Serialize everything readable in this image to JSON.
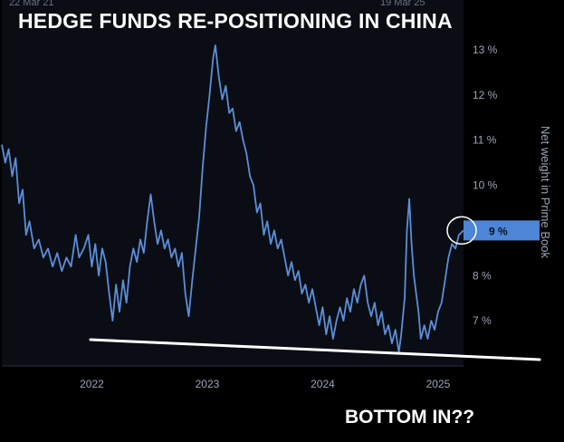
{
  "overlay": {
    "title": "HEDGE FUNDS RE-POSITIONING IN CHINA",
    "bottom_note": "BOTTOM IN??",
    "top_date_left": "22 Mar 21",
    "top_date_right": "19 Mar 25"
  },
  "colors": {
    "background": "#000000",
    "plot_background": "#0a0d14",
    "line": "#5b8fd9",
    "axis_text": "#9aa3b5",
    "highlight_box": "#4d86d6",
    "trend_line": "#ffffff"
  },
  "chart_data": {
    "type": "line",
    "title": "",
    "xlabel": "",
    "ylabel": "Net weight in Prime Book",
    "x_ticks": [
      "2022",
      "2023",
      "2024",
      "2025"
    ],
    "y_ticks": [
      "7 %",
      "8 %",
      "9 %",
      "10 %",
      "11 %",
      "12 %",
      "13 %"
    ],
    "y_tick_values": [
      7,
      8,
      9,
      10,
      11,
      12,
      13
    ],
    "ylim": [
      6.0,
      13.3
    ],
    "xlim": [
      2021.22,
      2025.22
    ],
    "grid": false,
    "current_value_label": "9 %",
    "current_value": 9.0,
    "series": [
      {
        "values": [
          [
            2021.22,
            10.9
          ],
          [
            2021.25,
            10.5
          ],
          [
            2021.28,
            10.8
          ],
          [
            2021.31,
            10.2
          ],
          [
            2021.34,
            10.6
          ],
          [
            2021.37,
            9.6
          ],
          [
            2021.4,
            9.9
          ],
          [
            2021.43,
            8.9
          ],
          [
            2021.46,
            9.2
          ],
          [
            2021.5,
            8.6
          ],
          [
            2021.54,
            8.8
          ],
          [
            2021.58,
            8.4
          ],
          [
            2021.62,
            8.6
          ],
          [
            2021.66,
            8.2
          ],
          [
            2021.7,
            8.5
          ],
          [
            2021.74,
            8.1
          ],
          [
            2021.78,
            8.4
          ],
          [
            2021.82,
            8.2
          ],
          [
            2021.86,
            8.9
          ],
          [
            2021.89,
            8.4
          ],
          [
            2021.93,
            8.6
          ],
          [
            2021.97,
            8.9
          ],
          [
            2022.0,
            8.2
          ],
          [
            2022.03,
            8.7
          ],
          [
            2022.06,
            8.0
          ],
          [
            2022.09,
            8.6
          ],
          [
            2022.12,
            8.3
          ],
          [
            2022.15,
            7.6
          ],
          [
            2022.18,
            7.0
          ],
          [
            2022.21,
            7.8
          ],
          [
            2022.24,
            7.2
          ],
          [
            2022.27,
            7.9
          ],
          [
            2022.3,
            7.4
          ],
          [
            2022.33,
            8.2
          ],
          [
            2022.36,
            8.6
          ],
          [
            2022.39,
            8.3
          ],
          [
            2022.42,
            8.8
          ],
          [
            2022.45,
            8.5
          ],
          [
            2022.48,
            9.2
          ],
          [
            2022.51,
            9.8
          ],
          [
            2022.54,
            9.2
          ],
          [
            2022.57,
            8.7
          ],
          [
            2022.6,
            9.0
          ],
          [
            2022.63,
            8.6
          ],
          [
            2022.66,
            8.8
          ],
          [
            2022.69,
            8.4
          ],
          [
            2022.72,
            8.6
          ],
          [
            2022.75,
            8.2
          ],
          [
            2022.78,
            8.5
          ],
          [
            2022.81,
            7.6
          ],
          [
            2022.84,
            7.1
          ],
          [
            2022.87,
            7.9
          ],
          [
            2022.9,
            8.6
          ],
          [
            2022.93,
            9.3
          ],
          [
            2022.96,
            10.4
          ],
          [
            2022.99,
            11.3
          ],
          [
            2023.02,
            12.0
          ],
          [
            2023.05,
            12.8
          ],
          [
            2023.07,
            13.1
          ],
          [
            2023.1,
            12.4
          ],
          [
            2023.13,
            11.9
          ],
          [
            2023.16,
            12.2
          ],
          [
            2023.19,
            11.6
          ],
          [
            2023.22,
            11.7
          ],
          [
            2023.25,
            11.2
          ],
          [
            2023.28,
            11.4
          ],
          [
            2023.31,
            11.0
          ],
          [
            2023.34,
            10.7
          ],
          [
            2023.37,
            10.2
          ],
          [
            2023.4,
            10.0
          ],
          [
            2023.43,
            9.4
          ],
          [
            2023.46,
            9.6
          ],
          [
            2023.49,
            8.9
          ],
          [
            2023.52,
            9.2
          ],
          [
            2023.55,
            8.7
          ],
          [
            2023.58,
            9.0
          ],
          [
            2023.61,
            8.6
          ],
          [
            2023.64,
            8.8
          ],
          [
            2023.67,
            8.4
          ],
          [
            2023.7,
            8.0
          ],
          [
            2023.73,
            8.3
          ],
          [
            2023.76,
            7.9
          ],
          [
            2023.79,
            8.1
          ],
          [
            2023.82,
            7.6
          ],
          [
            2023.85,
            7.8
          ],
          [
            2023.88,
            7.4
          ],
          [
            2023.91,
            7.7
          ],
          [
            2023.94,
            7.3
          ],
          [
            2023.97,
            6.9
          ],
          [
            2024.0,
            7.3
          ],
          [
            2024.03,
            6.7
          ],
          [
            2024.06,
            7.1
          ],
          [
            2024.09,
            6.6
          ],
          [
            2024.12,
            7.0
          ],
          [
            2024.15,
            7.3
          ],
          [
            2024.18,
            7.0
          ],
          [
            2024.21,
            7.5
          ],
          [
            2024.24,
            7.2
          ],
          [
            2024.27,
            7.7
          ],
          [
            2024.3,
            7.4
          ],
          [
            2024.33,
            7.8
          ],
          [
            2024.36,
            8.0
          ],
          [
            2024.39,
            7.4
          ],
          [
            2024.42,
            7.1
          ],
          [
            2024.45,
            7.4
          ],
          [
            2024.48,
            6.9
          ],
          [
            2024.51,
            7.2
          ],
          [
            2024.54,
            6.7
          ],
          [
            2024.57,
            6.9
          ],
          [
            2024.6,
            6.5
          ],
          [
            2024.63,
            6.8
          ],
          [
            2024.66,
            6.3
          ],
          [
            2024.68,
            6.7
          ],
          [
            2024.71,
            7.5
          ],
          [
            2024.73,
            9.0
          ],
          [
            2024.75,
            9.7
          ],
          [
            2024.77,
            8.7
          ],
          [
            2024.79,
            8.0
          ],
          [
            2024.81,
            7.6
          ],
          [
            2024.83,
            7.2
          ],
          [
            2024.85,
            6.6
          ],
          [
            2024.88,
            6.9
          ],
          [
            2024.91,
            6.6
          ],
          [
            2024.94,
            7.0
          ],
          [
            2024.97,
            6.8
          ],
          [
            2025.0,
            7.2
          ],
          [
            2025.03,
            7.4
          ],
          [
            2025.06,
            7.9
          ],
          [
            2025.09,
            8.4
          ],
          [
            2025.12,
            8.7
          ],
          [
            2025.15,
            8.6
          ],
          [
            2025.18,
            8.9
          ],
          [
            2025.22,
            9.0
          ]
        ]
      }
    ]
  }
}
